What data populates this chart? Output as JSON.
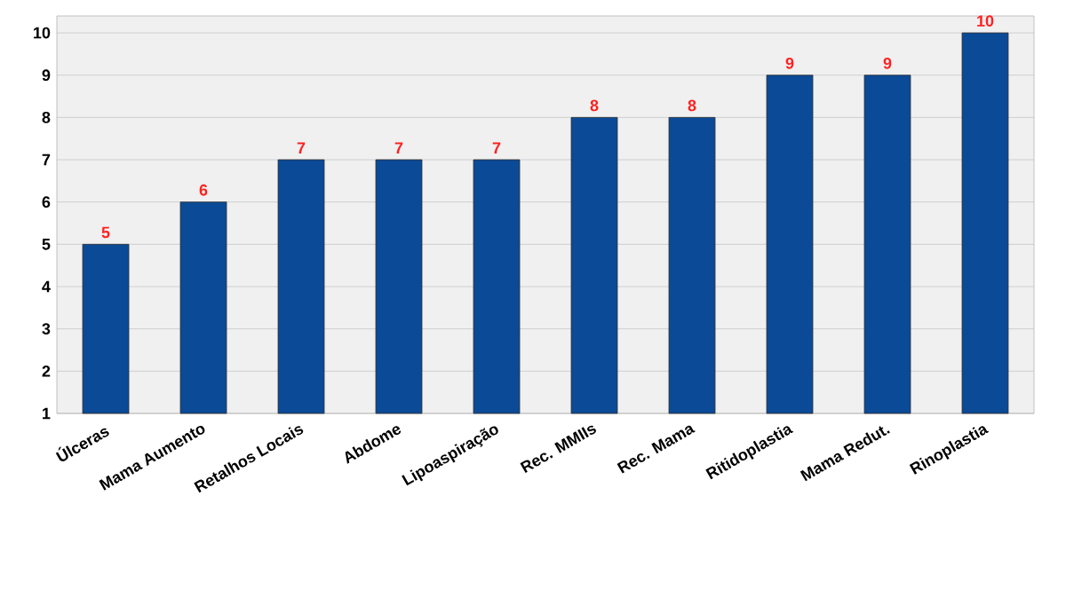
{
  "chart_data": {
    "type": "bar",
    "categories": [
      "Úlceras",
      "Mama Aumento",
      "Retalhos Locais",
      "Abdome",
      "Lipoaspiração",
      "Rec. MMIIs",
      "Rec. Mama",
      "Ritidoplastia",
      "Mama Redut.",
      "Rinoplastia"
    ],
    "values": [
      5,
      6,
      7,
      7,
      7,
      8,
      8,
      9,
      9,
      10
    ],
    "color": "#0b4a96",
    "ylim": [
      1,
      10.4
    ],
    "yticks": [
      1,
      2,
      3,
      4,
      5,
      6,
      7,
      8,
      9,
      10
    ],
    "grid": "y",
    "data_labels": true
  }
}
